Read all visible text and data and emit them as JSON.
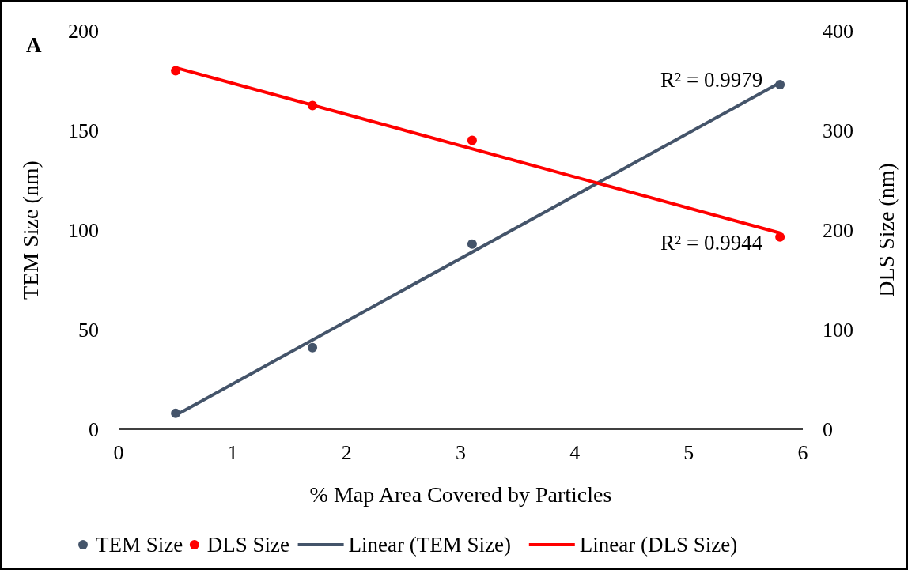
{
  "chart_data": {
    "type": "scatter",
    "xlabel": "% Map Area Covered by Particles",
    "ylabel": "TEM Size (nm)",
    "y2label": "DLS Size (nm)",
    "xlim": [
      0,
      6
    ],
    "xticks": [
      0,
      1,
      2,
      3,
      4,
      5,
      6
    ],
    "ylim": [
      0,
      200
    ],
    "yticks": [
      0,
      50,
      100,
      150,
      200
    ],
    "y2lim": [
      0,
      400
    ],
    "y2ticks": [
      0,
      100,
      200,
      300,
      400
    ],
    "legend": "bottom",
    "grid": false,
    "series": [
      {
        "name": "TEM Size",
        "marker": "circle",
        "color": "#44546a",
        "x": [
          0.5,
          1.7,
          3.1,
          5.8
        ],
        "values": [
          8,
          41,
          93,
          173
        ]
      },
      {
        "name": "DLS Size",
        "marker": "circle",
        "axis": "y2",
        "color": "#ff0000",
        "x": [
          0.5,
          1.7,
          3.1,
          5.8
        ],
        "values": [
          360,
          325,
          290,
          193
        ]
      },
      {
        "name": "Linear (TEM Size)",
        "type": "line",
        "color": "#44546a",
        "x": [
          0.5,
          5.8
        ],
        "values": [
          7,
          174
        ]
      },
      {
        "name": "Linear (DLS Size)",
        "type": "line",
        "axis": "y2",
        "color": "#ff0000",
        "x": [
          0.5,
          5.8
        ],
        "values": [
          363,
          197
        ]
      }
    ],
    "annotations": [
      "A",
      "R² = 0.9979",
      "R² = 0.9944"
    ]
  }
}
